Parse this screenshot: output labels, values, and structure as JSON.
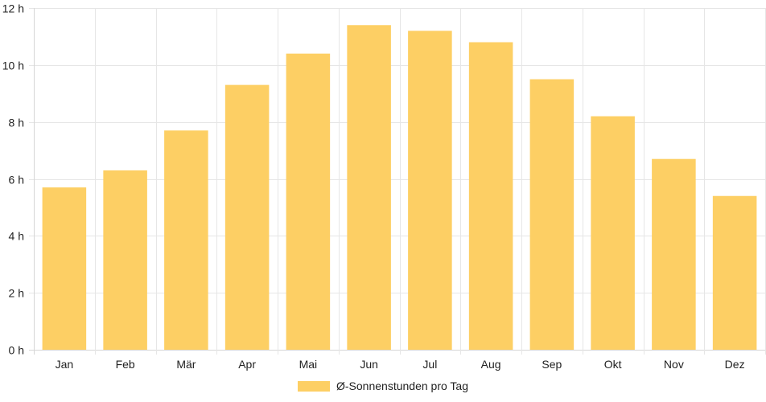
{
  "chart_data": {
    "type": "bar",
    "categories": [
      "Jan",
      "Feb",
      "Mär",
      "Apr",
      "Mai",
      "Jun",
      "Jul",
      "Aug",
      "Sep",
      "Okt",
      "Nov",
      "Dez"
    ],
    "series": [
      {
        "name": "Ø-Sonnenstunden pro Tag",
        "values": [
          5.7,
          6.3,
          7.7,
          9.3,
          10.4,
          11.4,
          11.2,
          10.8,
          9.5,
          8.2,
          6.7,
          5.4
        ]
      }
    ],
    "yticks": [
      {
        "value": 0,
        "label": "0 h"
      },
      {
        "value": 2,
        "label": "2 h"
      },
      {
        "value": 4,
        "label": "4 h"
      },
      {
        "value": 6,
        "label": "6 h"
      },
      {
        "value": 8,
        "label": "8 h"
      },
      {
        "value": 10,
        "label": "10 h"
      },
      {
        "value": 12,
        "label": "12 h"
      }
    ],
    "ylim": [
      0,
      12
    ],
    "grid": true,
    "legend_position": "bottom",
    "bar_color": "#fdcf64"
  }
}
